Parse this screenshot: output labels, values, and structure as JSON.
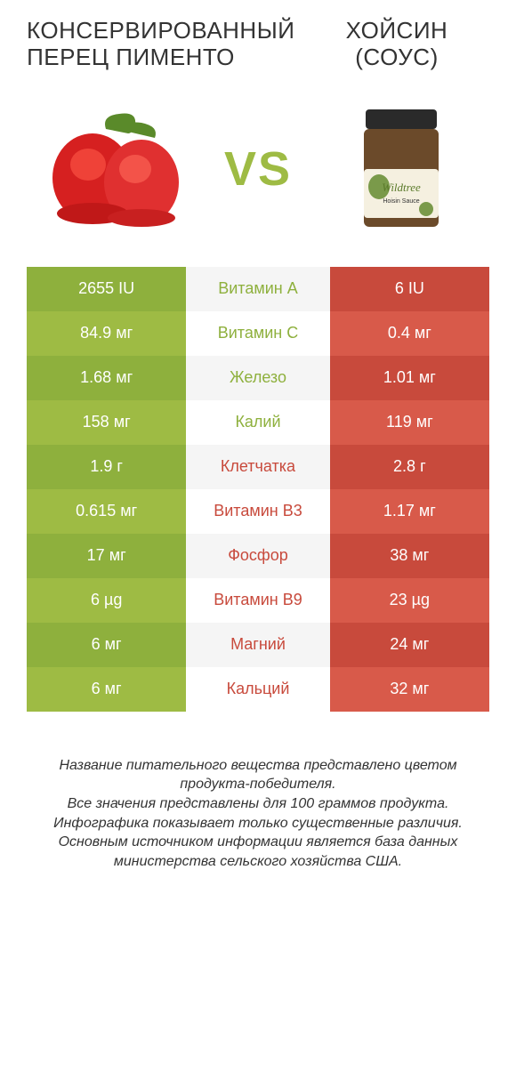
{
  "left_title": "КОНСЕРВИРОВАННЫЙ ПЕРЕЦ ПИМЕНТО",
  "right_title": "ХОЙСИН (СОУС)",
  "vs": "VS",
  "colors": {
    "green_dark": "#8eb03d",
    "green_light": "#9ebb44",
    "red_dark": "#c84a3c",
    "red_light": "#d85a4a",
    "white": "#ffffff",
    "mid_text_green": "#8eb03d",
    "mid_text_red": "#c84a3c",
    "mid_bg_a": "#f5f5f5",
    "mid_bg_b": "#ffffff"
  },
  "rows": [
    {
      "left": "2655 IU",
      "label": "Витамин A",
      "right": "6 IU",
      "winner": "left"
    },
    {
      "left": "84.9 мг",
      "label": "Витамин C",
      "right": "0.4 мг",
      "winner": "left"
    },
    {
      "left": "1.68 мг",
      "label": "Железо",
      "right": "1.01 мг",
      "winner": "left"
    },
    {
      "left": "158 мг",
      "label": "Калий",
      "right": "119 мг",
      "winner": "left"
    },
    {
      "left": "1.9 г",
      "label": "Клетчатка",
      "right": "2.8 г",
      "winner": "right"
    },
    {
      "left": "0.615 мг",
      "label": "Витамин B3",
      "right": "1.17 мг",
      "winner": "right"
    },
    {
      "left": "17 мг",
      "label": "Фосфор",
      "right": "38 мг",
      "winner": "right"
    },
    {
      "left": "6 µg",
      "label": "Витамин B9",
      "right": "23 µg",
      "winner": "right"
    },
    {
      "left": "6 мг",
      "label": "Магний",
      "right": "24 мг",
      "winner": "right"
    },
    {
      "left": "6 мг",
      "label": "Кальций",
      "right": "32 мг",
      "winner": "right"
    }
  ],
  "footer": [
    "Название питательного вещества представлено цветом продукта-победителя.",
    "Все значения представлены для 100 граммов продукта.",
    "Инфографика показывает только существенные различия.",
    "Основным источником информации является база данных министерства сельского хозяйства США."
  ],
  "jar_label": "Wildtree",
  "jar_sub": "Hoisin Sauce"
}
